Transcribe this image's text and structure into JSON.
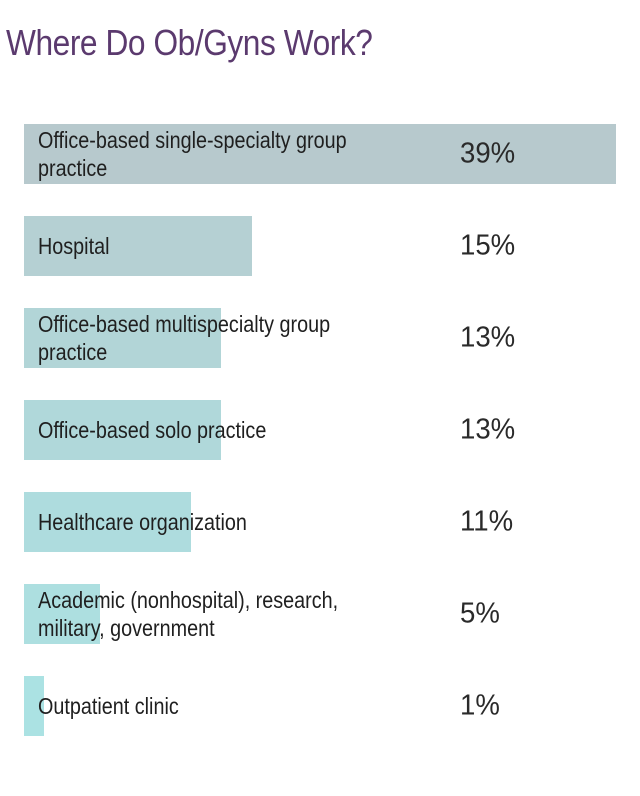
{
  "chart_data": {
    "type": "bar",
    "orientation": "horizontal",
    "title": "Where Do Ob/Gyns Work?",
    "categories": [
      "Office-based single-specialty group practice",
      "Hospital",
      "Office-based multispecialty group practice",
      "Office-based solo practice",
      "Healthcare organization",
      "Academic (nonhospital), research, military, government",
      "Outpatient clinic"
    ],
    "values": [
      39,
      15,
      13,
      13,
      11,
      5,
      1
    ],
    "value_labels": [
      "39%",
      "15%",
      "13%",
      "13%",
      "11%",
      "5%",
      "1%"
    ],
    "unit": "%",
    "xlim": [
      0,
      39
    ],
    "grid": false,
    "legend": "none"
  },
  "colors": {
    "title": "#5b3a6e",
    "bars": [
      "#b7c9cd",
      "#b5d0d3",
      "#b2d5d7",
      "#b0d8da",
      "#aedcde",
      "#addfe0",
      "#abe2e3"
    ]
  }
}
